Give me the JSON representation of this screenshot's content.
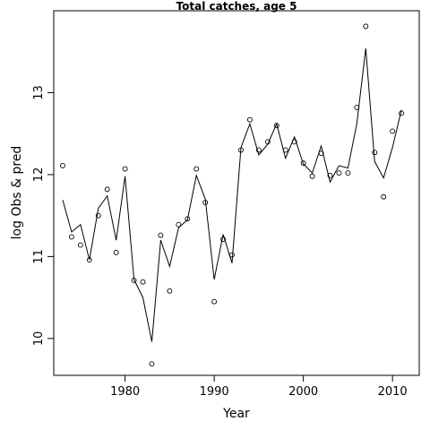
{
  "chart_data": {
    "type": "scatter",
    "title": "Total catches, age 5",
    "xlabel": "Year",
    "ylabel": "log Obs & pred",
    "xlim": [
      1972,
      2013
    ],
    "ylim": [
      9.55,
      14.0
    ],
    "xticks": [
      1980,
      1990,
      2000,
      2010
    ],
    "yticks": [
      10,
      11,
      12,
      13
    ],
    "grid": false,
    "legend": "none",
    "series": [
      {
        "kind": "points",
        "marker": "open-circle",
        "x": [
          1973,
          1974,
          1975,
          1976,
          1977,
          1978,
          1979,
          1980,
          1981,
          1982,
          1983,
          1984,
          1985,
          1986,
          1987,
          1988,
          1989,
          1990,
          1991,
          1992,
          1993,
          1994,
          1995,
          1996,
          1997,
          1998,
          1999,
          2000,
          2001,
          2002,
          2003,
          2004,
          2005,
          2006,
          2007,
          2008,
          2009,
          2010,
          2011
        ],
        "y": [
          12.11,
          11.24,
          11.14,
          10.96,
          11.5,
          11.82,
          11.05,
          12.07,
          10.71,
          10.69,
          9.69,
          11.26,
          10.58,
          11.39,
          11.46,
          12.07,
          11.66,
          10.45,
          11.21,
          11.02,
          12.3,
          12.67,
          12.3,
          12.4,
          12.6,
          12.3,
          12.4,
          12.14,
          11.98,
          12.26,
          11.99,
          12.02,
          12.02,
          12.82,
          13.81,
          12.27,
          11.73,
          12.53,
          12.75
        ]
      },
      {
        "kind": "line",
        "x": [
          1973,
          1974,
          1975,
          1976,
          1977,
          1978,
          1979,
          1980,
          1981,
          1982,
          1983,
          1984,
          1985,
          1986,
          1987,
          1988,
          1989,
          1990,
          1991,
          1992,
          1993,
          1994,
          1995,
          1996,
          1997,
          1998,
          1999,
          2000,
          2001,
          2002,
          2003,
          2004,
          2005,
          2006,
          2007,
          2008,
          2009,
          2010,
          2011
        ],
        "y": [
          11.69,
          11.3,
          11.39,
          10.96,
          11.59,
          11.74,
          11.2,
          11.98,
          10.72,
          10.5,
          9.96,
          11.2,
          10.88,
          11.35,
          11.45,
          11.99,
          11.7,
          10.72,
          11.27,
          10.92,
          12.33,
          12.62,
          12.24,
          12.37,
          12.62,
          12.2,
          12.46,
          12.13,
          12.02,
          12.35,
          11.91,
          12.11,
          12.08,
          12.62,
          13.54,
          12.16,
          11.96,
          12.33,
          12.79
        ]
      }
    ]
  }
}
